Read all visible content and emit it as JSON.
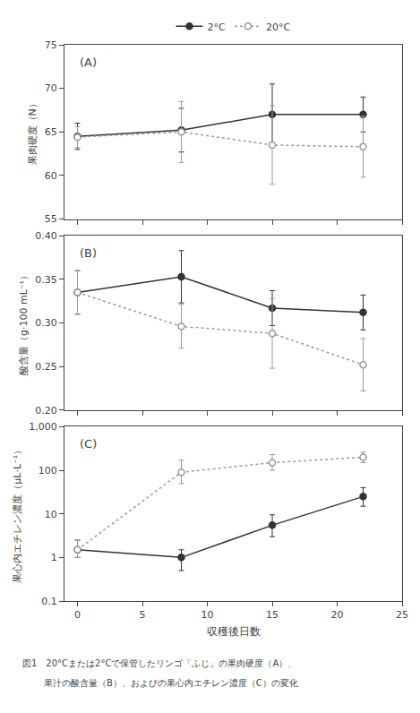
{
  "chart_data": [
    {
      "type": "line",
      "title": "(A)",
      "ylabel": "果肉硬度（N）",
      "x": [
        0,
        8,
        15,
        22
      ],
      "xlim": [
        -1,
        25
      ],
      "xticks": [
        0,
        5,
        10,
        15,
        20,
        25
      ],
      "ylim": [
        55,
        75
      ],
      "yticks": [
        55,
        60,
        65,
        70,
        75
      ],
      "grid": false,
      "legend": "top",
      "tick_labels": "y",
      "series": [
        {
          "name": "2°C",
          "color": "#333333",
          "line_style": "solid",
          "marker": "filled",
          "values": [
            64.5,
            65.2,
            67.0,
            67.0
          ],
          "yerr": [
            1.5,
            2.5,
            3.5,
            2.0
          ]
        },
        {
          "name": "20°C",
          "color": "#999999",
          "line_style": "dotted",
          "marker": "open",
          "values": [
            64.4,
            65.0,
            63.5,
            63.3
          ],
          "yerr": [
            1.2,
            3.5,
            4.5,
            3.5
          ]
        }
      ]
    },
    {
      "type": "line",
      "title": "(B)",
      "ylabel": "酸含量（g·100 mL⁻¹）",
      "x": [
        0,
        8,
        15,
        22
      ],
      "xlim": [
        -1,
        25
      ],
      "xticks": [
        0,
        5,
        10,
        15,
        20,
        25
      ],
      "ylim": [
        0.2,
        0.4
      ],
      "yticks": [
        {
          "value": 0.2,
          "label": "0.20"
        },
        0.25,
        {
          "value": 0.3,
          "label": "0.30"
        },
        0.35,
        {
          "value": 0.4,
          "label": "0.40"
        }
      ],
      "grid": false,
      "tick_labels": "y",
      "series": [
        {
          "name": "2°C",
          "color": "#333333",
          "line_style": "solid",
          "marker": "filled",
          "values": [
            0.335,
            0.353,
            0.317,
            0.312
          ],
          "yerr": [
            0.025,
            0.03,
            0.02,
            0.02
          ]
        },
        {
          "name": "20°C",
          "color": "#999999",
          "line_style": "dotted",
          "marker": "open",
          "values": [
            0.335,
            0.296,
            0.288,
            0.252
          ],
          "yerr": [
            0.025,
            0.025,
            0.04,
            0.03
          ]
        }
      ]
    },
    {
      "type": "line",
      "title": "(C)",
      "ylabel": "果心内エチレン濃度（μL·L⁻¹）",
      "xlabel": "収穫後日数",
      "x": [
        0,
        8,
        15,
        22
      ],
      "xlim": [
        -1,
        25
      ],
      "xticks": [
        0,
        5,
        10,
        15,
        20,
        25
      ],
      "log": "y",
      "ylim": [
        0.1,
        1000
      ],
      "yticks": [
        0.1,
        1,
        10,
        100,
        {
          "value": 1000,
          "label": "1,000"
        }
      ],
      "grid": false,
      "annotations": [
        "図1　20°Cまたは2°Cで保管したリンゴ「ふじ」の果肉硬度（A）、",
        "果汁の酸含量（B）、およびの果心内エチレン濃度（C）の変化"
      ],
      "series": [
        {
          "name": "2°C",
          "color": "#333333",
          "line_style": "solid",
          "marker": "filled",
          "values": [
            1.5,
            1.0,
            5.5,
            25.0
          ],
          "yerr_lo": [
            0.5,
            0.5,
            2.5,
            10.0
          ],
          "yerr_hi": [
            1.0,
            0.5,
            4.0,
            15.0
          ]
        },
        {
          "name": "20°C",
          "color": "#999999",
          "line_style": "dotted",
          "marker": "open",
          "values": [
            1.5,
            90.0,
            150.0,
            200.0
          ],
          "yerr_lo": [
            0.5,
            40.0,
            50.0,
            50.0
          ],
          "yerr_hi": [
            1.0,
            80.0,
            80.0,
            60.0
          ]
        }
      ]
    }
  ]
}
